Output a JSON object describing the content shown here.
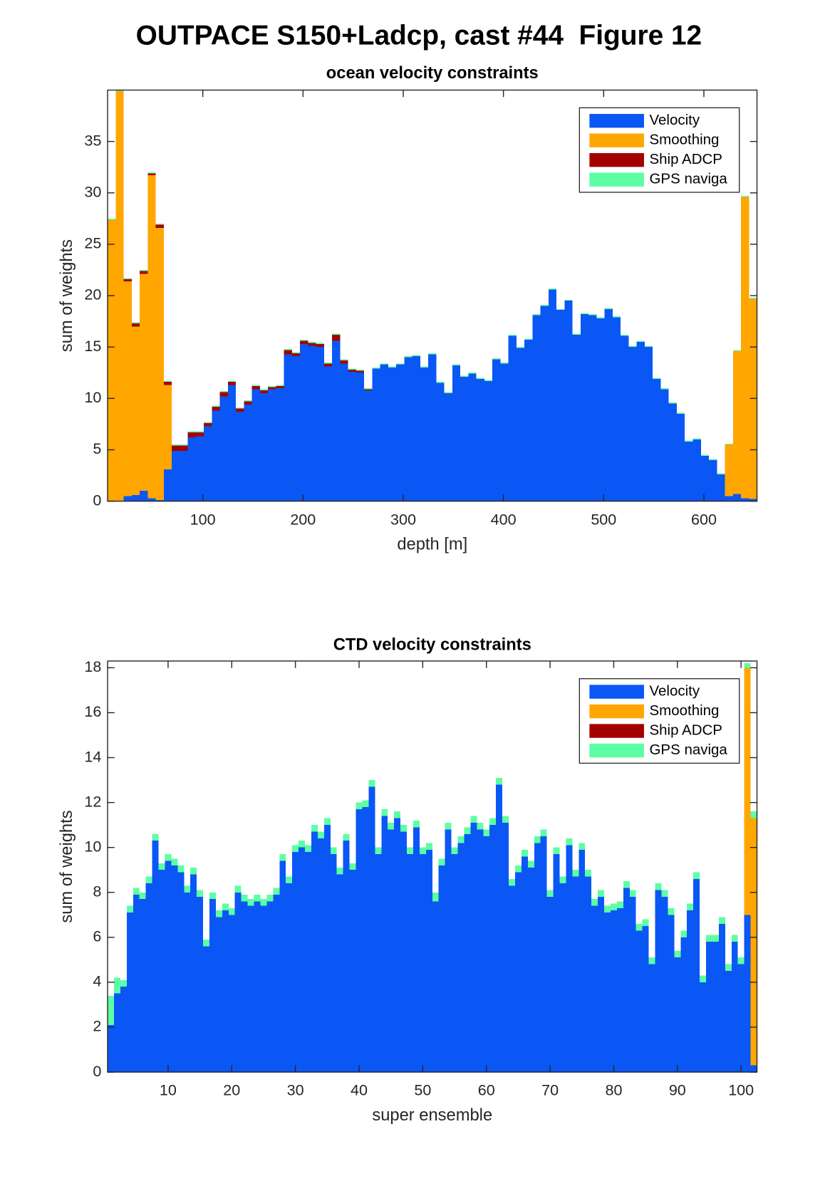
{
  "title": "OUTPACE S150+Ladcp, cast #44  Figure 12",
  "chart_data": [
    {
      "type": "bar",
      "stacked": true,
      "title": "ocean velocity constraints",
      "xlabel": "depth [m]",
      "ylabel": "sum of weights",
      "legend": "northeast",
      "x": [
        9,
        17,
        25,
        33,
        41,
        49,
        57,
        65,
        73,
        81,
        89,
        97,
        105,
        113,
        121,
        129,
        137,
        145,
        153,
        161,
        169,
        177,
        185,
        193,
        201,
        209,
        217,
        225,
        233,
        241,
        249,
        257,
        265,
        273,
        281,
        289,
        297,
        305,
        313,
        321,
        329,
        337,
        345,
        353,
        361,
        369,
        377,
        385,
        393,
        401,
        409,
        417,
        425,
        433,
        441,
        449,
        457,
        465,
        473,
        481,
        489,
        497,
        505,
        513,
        521,
        529,
        537,
        545,
        553,
        561,
        569,
        577,
        585,
        593,
        601,
        609,
        617,
        625,
        633,
        641,
        649
      ],
      "xlim": [
        5,
        653
      ],
      "xticks": [
        100,
        200,
        300,
        400,
        500,
        600
      ],
      "ylim": [
        0,
        40
      ],
      "yticks": [
        0,
        5,
        10,
        15,
        20,
        25,
        30,
        35
      ],
      "series": [
        {
          "name": "Velocity",
          "color": "#0a57f5",
          "values": [
            0,
            0,
            0.5,
            0.6,
            1.0,
            0.3,
            0.1,
            3.1,
            4.9,
            4.9,
            6.2,
            6.3,
            7.3,
            8.8,
            10.2,
            11.3,
            8.7,
            9.4,
            10.9,
            10.5,
            10.9,
            11.0,
            14.3,
            14.1,
            15.3,
            15.1,
            15.0,
            13.1,
            15.6,
            13.4,
            12.6,
            12.5,
            10.8,
            12.9,
            13.3,
            13.0,
            13.3,
            14.0,
            14.1,
            13.0,
            14.3,
            11.5,
            10.5,
            13.2,
            12.1,
            12.4,
            11.9,
            11.7,
            13.8,
            13.4,
            16.1,
            14.9,
            15.7,
            18.1,
            19.0,
            20.6,
            18.6,
            19.5,
            16.2,
            18.2,
            18.1,
            17.8,
            18.7,
            17.9,
            16.1,
            15.0,
            15.5,
            15.0,
            11.9,
            10.9,
            9.5,
            8.5,
            5.8,
            6.0,
            4.4,
            4.0,
            2.6,
            0.5,
            0.7,
            0.3,
            0.2
          ]
        },
        {
          "name": "Smoothing",
          "color": "#ffa600",
          "values": [
            27.4,
            39.9,
            20.9,
            16.4,
            21.1,
            31.4,
            26.5,
            8.2,
            0,
            0,
            0,
            0,
            0,
            0,
            0,
            0,
            0,
            0,
            0,
            0,
            0,
            0,
            0,
            0,
            0,
            0,
            0,
            0,
            0,
            0,
            0,
            0,
            0,
            0,
            0,
            0,
            0,
            0,
            0,
            0,
            0,
            0,
            0,
            0,
            0,
            0,
            0,
            0,
            0,
            0,
            0,
            0,
            0,
            0,
            0,
            0,
            0,
            0,
            0,
            0,
            0,
            0,
            0,
            0,
            0,
            0,
            0,
            0,
            0,
            0,
            0,
            0,
            0,
            0,
            0,
            0,
            0,
            5.0,
            13.9,
            29.3,
            19.5
          ]
        },
        {
          "name": "Ship ADCP",
          "color": "#a50000",
          "values": [
            0,
            0,
            0.2,
            0.3,
            0.3,
            0.2,
            0.3,
            0.3,
            0.5,
            0.5,
            0.5,
            0.4,
            0.3,
            0.4,
            0.4,
            0.3,
            0.3,
            0.3,
            0.3,
            0.3,
            0.2,
            0.2,
            0.4,
            0.3,
            0.3,
            0.3,
            0.3,
            0.3,
            0.6,
            0.3,
            0.2,
            0.2,
            0.1,
            0,
            0,
            0,
            0,
            0,
            0,
            0,
            0,
            0,
            0,
            0,
            0,
            0,
            0,
            0,
            0,
            0,
            0,
            0,
            0,
            0,
            0,
            0,
            0,
            0,
            0,
            0,
            0,
            0,
            0,
            0,
            0,
            0,
            0,
            0,
            0,
            0,
            0,
            0,
            0,
            0,
            0,
            0,
            0,
            0,
            0,
            0,
            0
          ]
        },
        {
          "name": "GPS naviga",
          "color": "#5cffa3",
          "values": [
            0.1,
            0.1,
            0.1,
            0.1,
            0.1,
            0.1,
            0.1,
            0.1,
            0.1,
            0.1,
            0.1,
            0.1,
            0.1,
            0.1,
            0.1,
            0.1,
            0.1,
            0.1,
            0.1,
            0.1,
            0.1,
            0.1,
            0.1,
            0.1,
            0.1,
            0.1,
            0.1,
            0.1,
            0.1,
            0.1,
            0.1,
            0.1,
            0.1,
            0.1,
            0.1,
            0.1,
            0.1,
            0.1,
            0.1,
            0.1,
            0.1,
            0.1,
            0.1,
            0.1,
            0.1,
            0.1,
            0.1,
            0.1,
            0.1,
            0.1,
            0.1,
            0.1,
            0.1,
            0.1,
            0.1,
            0.1,
            0.1,
            0.1,
            0.1,
            0.1,
            0.1,
            0.1,
            0.1,
            0.1,
            0.1,
            0.1,
            0.1,
            0.1,
            0.1,
            0.1,
            0.1,
            0.1,
            0.1,
            0.1,
            0.1,
            0.1,
            0.1,
            0.1,
            0.1,
            0.1,
            0.1
          ]
        }
      ]
    },
    {
      "type": "bar",
      "stacked": true,
      "title": "CTD velocity constraints",
      "xlabel": "super ensemble",
      "ylabel": "sum of weights",
      "legend": "northeast",
      "x": [
        1,
        2,
        3,
        4,
        5,
        6,
        7,
        8,
        9,
        10,
        11,
        12,
        13,
        14,
        15,
        16,
        17,
        18,
        19,
        20,
        21,
        22,
        23,
        24,
        25,
        26,
        27,
        28,
        29,
        30,
        31,
        32,
        33,
        34,
        35,
        36,
        37,
        38,
        39,
        40,
        41,
        42,
        43,
        44,
        45,
        46,
        47,
        48,
        49,
        50,
        51,
        52,
        53,
        54,
        55,
        56,
        57,
        58,
        59,
        60,
        61,
        62,
        63,
        64,
        65,
        66,
        67,
        68,
        69,
        70,
        71,
        72,
        73,
        74,
        75,
        76,
        77,
        78,
        79,
        80,
        81,
        82,
        83,
        84,
        85,
        86,
        87,
        88,
        89,
        90,
        91,
        92,
        93,
        94,
        95,
        96,
        97,
        98,
        99,
        100,
        101,
        102
      ],
      "xlim": [
        0.5,
        102.5
      ],
      "xticks": [
        10,
        20,
        30,
        40,
        50,
        60,
        70,
        80,
        90,
        100
      ],
      "ylim": [
        0,
        18.3
      ],
      "yticks": [
        0,
        2,
        4,
        6,
        8,
        10,
        12,
        14,
        16,
        18
      ],
      "series": [
        {
          "name": "Velocity",
          "color": "#0a57f5",
          "values": [
            2.1,
            3.5,
            3.8,
            7.1,
            7.9,
            7.7,
            8.4,
            10.3,
            9.0,
            9.4,
            9.2,
            8.9,
            8.0,
            8.8,
            7.8,
            5.6,
            7.7,
            6.9,
            7.2,
            7.0,
            8.0,
            7.6,
            7.4,
            7.6,
            7.4,
            7.6,
            7.9,
            9.4,
            8.4,
            9.8,
            10.0,
            9.8,
            10.7,
            10.4,
            11.0,
            9.7,
            8.8,
            10.3,
            9.0,
            11.7,
            11.8,
            12.7,
            9.7,
            11.4,
            10.8,
            11.3,
            10.7,
            9.7,
            10.9,
            9.7,
            9.9,
            7.6,
            9.2,
            10.8,
            9.7,
            10.2,
            10.6,
            11.1,
            10.8,
            10.5,
            11.0,
            12.8,
            11.1,
            8.3,
            8.9,
            9.6,
            9.1,
            10.2,
            10.5,
            7.8,
            9.7,
            8.4,
            10.1,
            8.7,
            9.9,
            8.7,
            7.4,
            7.8,
            7.1,
            7.2,
            7.3,
            8.2,
            7.8,
            6.3,
            6.5,
            4.8,
            8.1,
            7.8,
            7.0,
            5.1,
            6.0,
            7.2,
            8.6,
            4.0,
            5.8,
            5.8,
            6.6,
            4.5,
            5.8,
            4.8,
            7.0,
            0.3
          ]
        },
        {
          "name": "Smoothing",
          "color": "#ffa600",
          "values": [
            0,
            0,
            0,
            0,
            0,
            0,
            0,
            0,
            0,
            0,
            0,
            0,
            0,
            0,
            0,
            0,
            0,
            0,
            0,
            0,
            0,
            0,
            0,
            0,
            0,
            0,
            0,
            0,
            0,
            0,
            0,
            0,
            0,
            0,
            0,
            0,
            0,
            0,
            0,
            0,
            0,
            0,
            0,
            0,
            0,
            0,
            0,
            0,
            0,
            0,
            0,
            0,
            0,
            0,
            0,
            0,
            0,
            0,
            0,
            0,
            0,
            0,
            0,
            0,
            0,
            0,
            0,
            0,
            0,
            0,
            0,
            0,
            0,
            0,
            0,
            0,
            0,
            0,
            0,
            0,
            0,
            0,
            0,
            0,
            0,
            0,
            0,
            0,
            0,
            0,
            0,
            0,
            0,
            0,
            0,
            0,
            0,
            0,
            0,
            0,
            11.0,
            11.0
          ]
        },
        {
          "name": "Ship ADCP",
          "color": "#a50000",
          "values": [
            0,
            0,
            0,
            0,
            0,
            0,
            0,
            0,
            0,
            0,
            0,
            0,
            0,
            0,
            0,
            0,
            0,
            0,
            0,
            0,
            0,
            0,
            0,
            0,
            0,
            0,
            0,
            0,
            0,
            0,
            0,
            0,
            0,
            0,
            0,
            0,
            0,
            0,
            0,
            0,
            0,
            0,
            0,
            0,
            0,
            0,
            0,
            0,
            0,
            0,
            0,
            0,
            0,
            0,
            0,
            0,
            0,
            0,
            0,
            0,
            0,
            0,
            0,
            0,
            0,
            0,
            0,
            0,
            0,
            0,
            0,
            0,
            0,
            0,
            0,
            0,
            0,
            0,
            0,
            0,
            0,
            0,
            0,
            0,
            0,
            0,
            0,
            0,
            0,
            0,
            0,
            0,
            0,
            0,
            0,
            0,
            0,
            0,
            0,
            0,
            0,
            0
          ]
        },
        {
          "name": "GPS naviga",
          "color": "#5cffa3",
          "values": [
            1.3,
            0.7,
            0.3,
            0.3,
            0.3,
            0.3,
            0.3,
            0.3,
            0.3,
            0.3,
            0.3,
            0.3,
            0.3,
            0.3,
            0.3,
            0.3,
            0.3,
            0.3,
            0.3,
            0.3,
            0.3,
            0.3,
            0.3,
            0.3,
            0.3,
            0.3,
            0.3,
            0.3,
            0.3,
            0.3,
            0.3,
            0.3,
            0.3,
            0.3,
            0.3,
            0.3,
            0.3,
            0.3,
            0.3,
            0.3,
            0.3,
            0.3,
            0.3,
            0.3,
            0.3,
            0.3,
            0.3,
            0.3,
            0.3,
            0.3,
            0.3,
            0.4,
            0.3,
            0.3,
            0.3,
            0.3,
            0.3,
            0.3,
            0.3,
            0.3,
            0.3,
            0.3,
            0.3,
            0.3,
            0.3,
            0.3,
            0.3,
            0.3,
            0.3,
            0.3,
            0.3,
            0.3,
            0.3,
            0.3,
            0.3,
            0.3,
            0.3,
            0.3,
            0.3,
            0.3,
            0.3,
            0.3,
            0.3,
            0.3,
            0.3,
            0.3,
            0.3,
            0.3,
            0.3,
            0.3,
            0.3,
            0.3,
            0.3,
            0.3,
            0.3,
            0.3,
            0.3,
            0.3,
            0.3,
            0.3,
            0.2,
            0.3
          ]
        }
      ]
    }
  ]
}
